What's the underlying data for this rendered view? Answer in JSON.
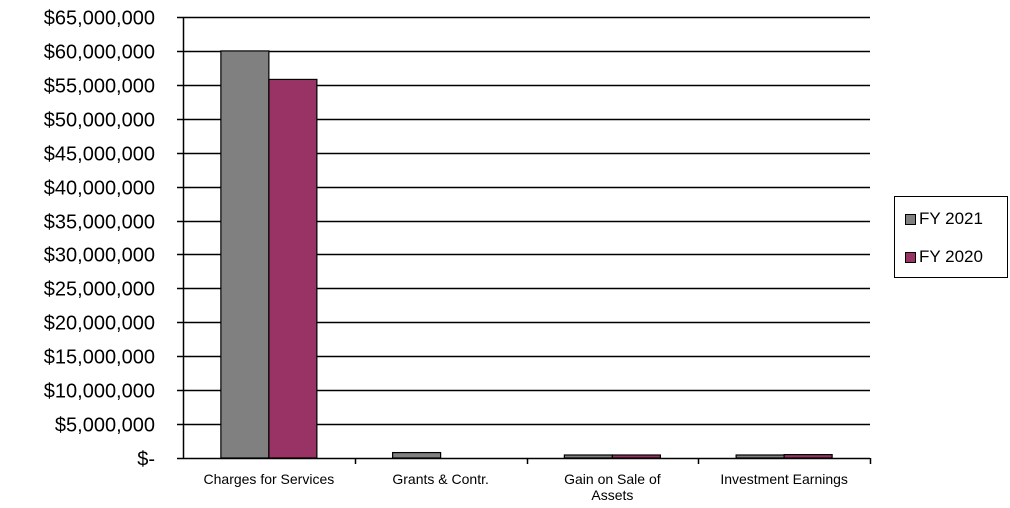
{
  "chart_data": {
    "type": "bar",
    "categories": [
      "Charges for Services",
      "Grants & Contr.",
      "Gain on Sale of Assets",
      "Investment Earnings"
    ],
    "category_lines": [
      [
        "Charges for Services"
      ],
      [
        "Grants & Contr."
      ],
      [
        "Gain on Sale of",
        "Assets"
      ],
      [
        "Investment Earnings"
      ]
    ],
    "series": [
      {
        "name": "FY 2021",
        "color": "#808080",
        "values": [
          60000000,
          800000,
          200000,
          200000
        ]
      },
      {
        "name": "FY 2020",
        "color": "#993366",
        "values": [
          55800000,
          0,
          150000,
          500000
        ]
      }
    ],
    "ylim": [
      0,
      65000000
    ],
    "ytick_values": [
      0,
      5000000,
      10000000,
      15000000,
      20000000,
      25000000,
      30000000,
      35000000,
      40000000,
      45000000,
      50000000,
      55000000,
      60000000,
      65000000
    ],
    "ytick_labels": [
      "$-",
      "$5,000,000",
      "$10,000,000",
      "$15,000,000",
      "$20,000,000",
      "$25,000,000",
      "$30,000,000",
      "$35,000,000",
      "$40,000,000",
      "$45,000,000",
      "$50,000,000",
      "$55,000,000",
      "$60,000,000",
      "$65,000,000"
    ],
    "grid": true,
    "legend_position": "right"
  }
}
